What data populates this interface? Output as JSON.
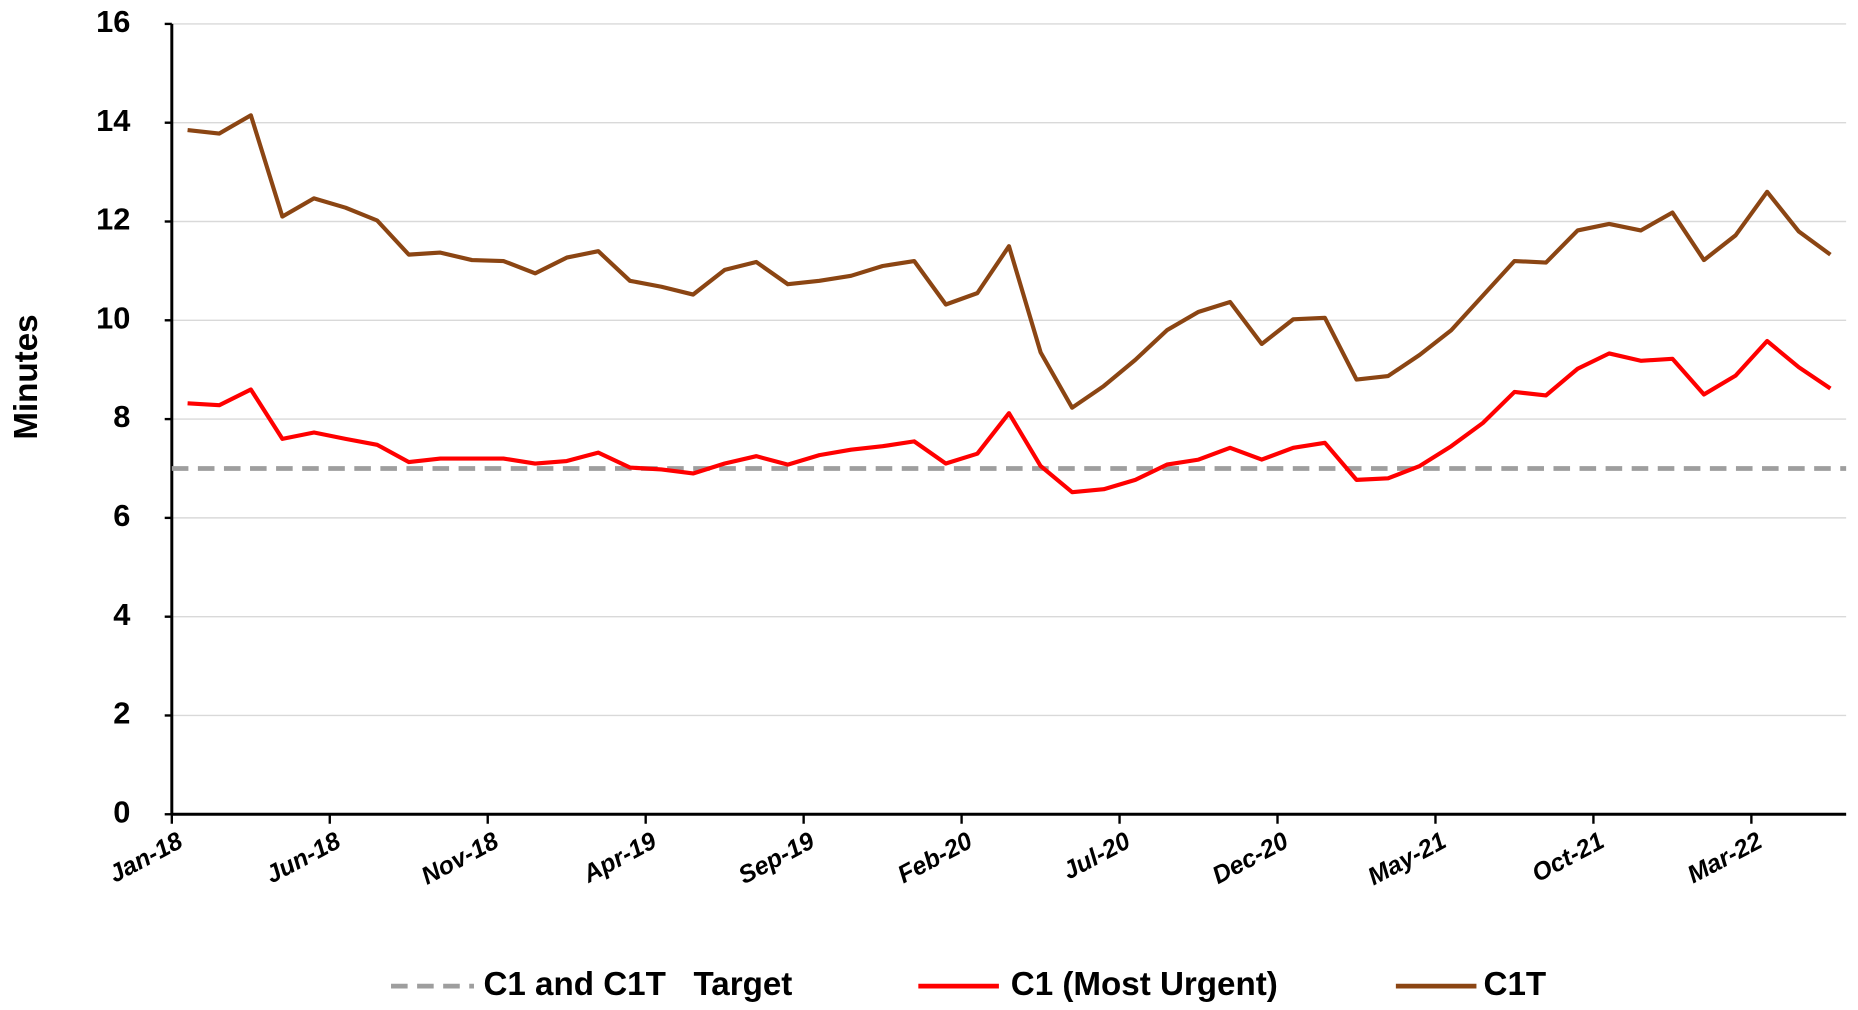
{
  "chart_data": {
    "type": "line",
    "ylabel": "Minutes",
    "categories": [
      "Jan-18",
      null,
      null,
      null,
      null,
      "Jun-18",
      null,
      null,
      null,
      null,
      "Nov-18",
      null,
      null,
      null,
      null,
      "Apr-19",
      null,
      null,
      null,
      null,
      "Sep-19",
      null,
      null,
      null,
      null,
      "Feb-20",
      null,
      null,
      null,
      null,
      "Jul-20",
      null,
      null,
      null,
      null,
      "Dec-20",
      null,
      null,
      null,
      null,
      "May-21",
      null,
      null,
      null,
      null,
      "Oct-21",
      null,
      null,
      null,
      null,
      "Mar-22",
      null,
      null
    ],
    "target": {
      "name": "C1 and C1T   Target",
      "color": "#9e9e9e",
      "value": 7
    },
    "series": [
      {
        "name": "C1 (Most Urgent)",
        "color": "#ff0000",
        "values": [
          8.32,
          8.28,
          8.6,
          7.6,
          7.73,
          7.6,
          7.48,
          7.13,
          7.2,
          7.2,
          7.2,
          7.1,
          7.15,
          7.32,
          7.02,
          6.98,
          6.9,
          7.1,
          7.25,
          7.08,
          7.27,
          7.38,
          7.45,
          7.55,
          7.1,
          7.3,
          8.12,
          7.05,
          6.52,
          6.58,
          6.77,
          7.08,
          7.18,
          7.42,
          7.18,
          7.42,
          7.52,
          6.77,
          6.8,
          7.05,
          7.45,
          7.92,
          8.55,
          8.48,
          9.02,
          9.33,
          9.18,
          9.22,
          8.5,
          8.88,
          9.58,
          9.05,
          8.62
        ]
      },
      {
        "name": "C1T",
        "color": "#8b4513",
        "values": [
          13.85,
          13.78,
          14.15,
          12.1,
          12.47,
          12.28,
          12.02,
          11.33,
          11.37,
          11.22,
          11.2,
          10.95,
          11.27,
          11.4,
          10.8,
          10.68,
          10.52,
          11.02,
          11.18,
          10.73,
          10.8,
          10.9,
          11.1,
          11.2,
          10.32,
          10.55,
          11.5,
          9.35,
          8.23,
          8.67,
          9.2,
          9.8,
          10.17,
          10.37,
          9.52,
          10.02,
          10.05,
          8.8,
          8.87,
          9.3,
          9.8,
          10.5,
          11.2,
          11.17,
          11.82,
          11.95,
          11.82,
          12.18,
          11.22,
          11.72,
          12.6,
          11.8,
          11.33
        ]
      }
    ],
    "ylim": [
      0,
      16
    ],
    "yticks": [
      0,
      2,
      4,
      6,
      8,
      10,
      12,
      14,
      16
    ],
    "grid": true
  }
}
